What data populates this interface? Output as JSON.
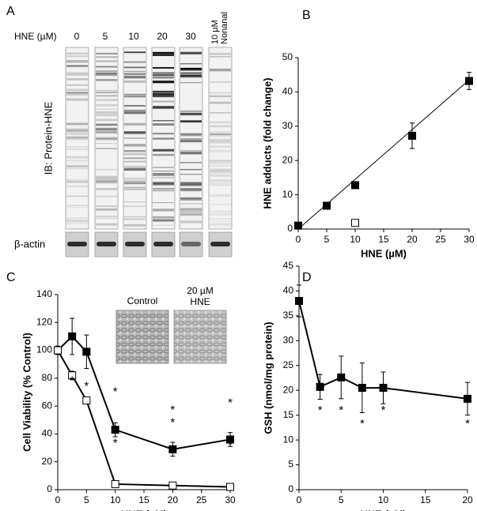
{
  "blot": {
    "panel": "A",
    "conc_label": "HNE (µM)",
    "lanes": [
      "0",
      "5",
      "10",
      "20",
      "30"
    ],
    "nonanal": [
      "10 µM",
      "Nonanal"
    ],
    "ylabel": "IB: Protein-HNE",
    "loading": "β-actin"
  },
  "chart_data": [
    {
      "type": "scatter",
      "panel": "B",
      "xlabel": "HNE (µM)",
      "ylabel": "HNE adducts (fold change)",
      "xlim": [
        0,
        30
      ],
      "ylim": [
        0,
        50
      ],
      "xticks": [
        0,
        5,
        10,
        15,
        20,
        25,
        30
      ],
      "yticks": [
        0,
        10,
        20,
        30,
        40,
        50
      ],
      "series": [
        {
          "x": [
            0,
            5,
            10,
            20,
            30
          ],
          "values": [
            1,
            6.8,
            12.8,
            27.2,
            43.2
          ],
          "errors": [
            0.5,
            0.5,
            0.7,
            3.7,
            2.5
          ],
          "marker": "filled",
          "line": false
        },
        {
          "x": [
            10
          ],
          "values": [
            1.8
          ],
          "marker": "open",
          "line": false
        },
        {
          "x": [
            0,
            30
          ],
          "values": [
            0,
            43.5
          ],
          "marker": "none",
          "line": true
        }
      ],
      "annotations": []
    },
    {
      "type": "line",
      "panel": "C",
      "xlabel": "HNE (µM)",
      "ylabel": "Cell Viability (% Control)",
      "xlim": [
        0,
        30
      ],
      "ylim": [
        0,
        140
      ],
      "xticks": [
        0,
        5,
        10,
        15,
        20,
        25,
        30
      ],
      "yticks": [
        0,
        20,
        40,
        60,
        80,
        100,
        120,
        140
      ],
      "series": [
        {
          "x": [
            0,
            2.5,
            5,
            10,
            20,
            30
          ],
          "values": [
            100,
            110,
            99,
            43,
            29,
            36
          ],
          "errors": [
            3,
            13,
            12,
            5,
            5,
            5
          ],
          "marker": "filled",
          "line": true
        },
        {
          "x": [
            0,
            2.5,
            5,
            10,
            20,
            30
          ],
          "values": [
            100,
            82,
            64,
            4,
            3,
            2
          ],
          "errors": [
            3,
            3,
            2,
            1,
            1,
            1
          ],
          "marker": "open",
          "line": true
        }
      ],
      "annotations": [
        {
          "text": "*",
          "x": 2.5,
          "y": 78
        },
        {
          "text": "*",
          "x": 5,
          "y": 74
        },
        {
          "text": "*",
          "x": 10,
          "y": 70
        },
        {
          "text": "*",
          "x": 10,
          "y": 33
        },
        {
          "text": "*",
          "x": 20,
          "y": 57
        },
        {
          "text": "*",
          "x": 20,
          "y": 48
        },
        {
          "text": "*",
          "x": 30,
          "y": 62
        },
        {
          "text": "*",
          "x": 30,
          "y": 32
        }
      ],
      "inset": {
        "control": "Control",
        "treated": [
          "20 µM",
          "HNE"
        ]
      }
    },
    {
      "type": "line",
      "panel": "D",
      "xlabel": "HNE (µM)",
      "ylabel": "GSH (nmol/mg protein)",
      "xlim": [
        0,
        20
      ],
      "ylim": [
        0,
        45
      ],
      "xticks": [
        0,
        5,
        10,
        15,
        20
      ],
      "yticks": [
        0,
        5,
        10,
        15,
        20,
        25,
        30,
        35,
        40,
        45
      ],
      "series": [
        {
          "x": [
            0,
            2.5,
            5,
            7.5,
            10,
            20
          ],
          "values": [
            38,
            20.7,
            22.6,
            20.5,
            20.5,
            18.3
          ],
          "errors": [
            3.2,
            2.5,
            4.3,
            5,
            3.2,
            3.3
          ],
          "marker": "filled",
          "line": true
        }
      ],
      "annotations": [
        {
          "text": "*",
          "x": 2.5,
          "y": 15.9
        },
        {
          "text": "*",
          "x": 5,
          "y": 15.9
        },
        {
          "text": "*",
          "x": 7.5,
          "y": 13.2
        },
        {
          "text": "*",
          "x": 10,
          "y": 15.9
        },
        {
          "text": "*",
          "x": 20,
          "y": 13.2
        }
      ]
    }
  ]
}
